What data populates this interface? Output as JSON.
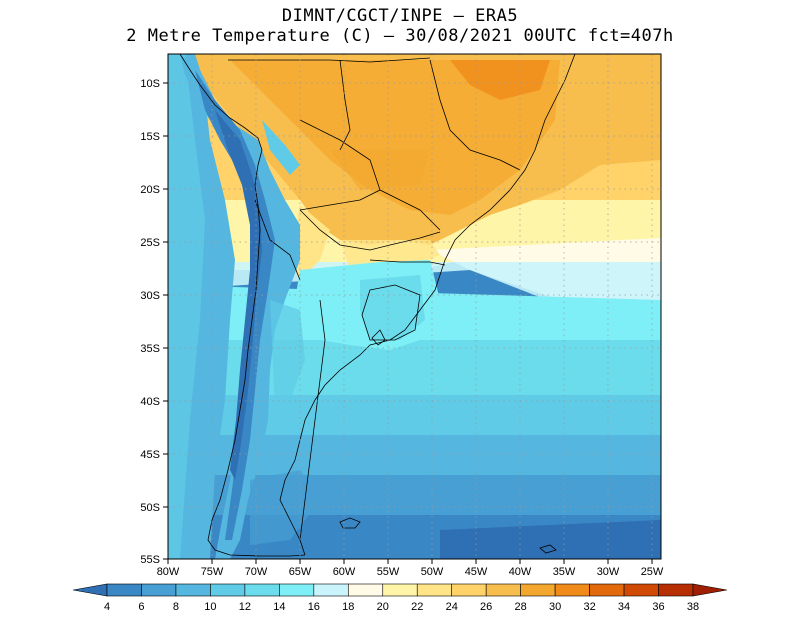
{
  "title_line1": "DIMNT/CGCT/INPE –  ERA5",
  "title_line2": "2 Metre Temperature (C) –  30/08/2021 00UTC fct=407h",
  "map": {
    "lat_ticks": [
      "10S",
      "15S",
      "20S",
      "25S",
      "30S",
      "35S",
      "40S",
      "45S",
      "50S",
      "55S"
    ],
    "lon_ticks": [
      "80W",
      "75W",
      "70W",
      "65W",
      "60W",
      "55W",
      "50W",
      "45W",
      "40W",
      "35W",
      "30W",
      "25W"
    ]
  },
  "colorbar": {
    "labels": [
      "4",
      "6",
      "8",
      "10",
      "12",
      "14",
      "16",
      "18",
      "20",
      "22",
      "24",
      "26",
      "28",
      "30",
      "32",
      "34",
      "36",
      "38"
    ],
    "colors": [
      "#2f6fb3",
      "#3a87c5",
      "#479fd3",
      "#55b6df",
      "#5fcbe6",
      "#6adcec",
      "#7eeff6",
      "#c9f4fb",
      "#fffbe6",
      "#fff5a8",
      "#ffe587",
      "#ffd36a",
      "#f8be4d",
      "#f4a72e",
      "#f08a19",
      "#e36a0c",
      "#d04a06",
      "#b82e03",
      "#a01f02"
    ]
  }
}
